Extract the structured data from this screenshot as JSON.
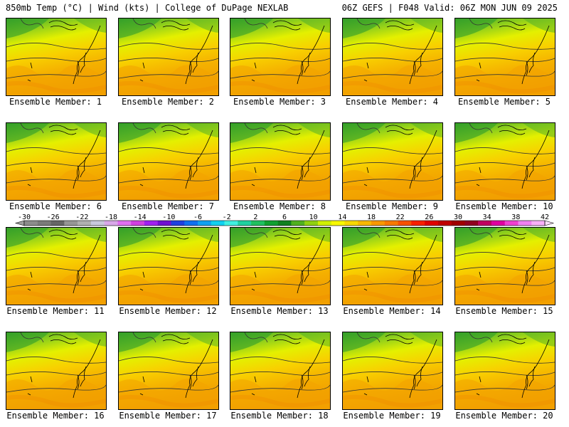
{
  "header": {
    "left": "850mb Temp (°C) | Wind (kts) | College of DuPage NEXLAB",
    "right": "06Z GEFS | F048 Valid: 06Z MON JUN 09 2025"
  },
  "panels": [
    {
      "label": "Ensemble Member: 1"
    },
    {
      "label": "Ensemble Member: 2"
    },
    {
      "label": "Ensemble Member: 3"
    },
    {
      "label": "Ensemble Member: 4"
    },
    {
      "label": "Ensemble Member: 5"
    },
    {
      "label": "Ensemble Member: 6"
    },
    {
      "label": "Ensemble Member: 7"
    },
    {
      "label": "Ensemble Member: 8"
    },
    {
      "label": "Ensemble Member: 9"
    },
    {
      "label": "Ensemble Member: 10"
    },
    {
      "label": "Ensemble Member: 11"
    },
    {
      "label": "Ensemble Member: 12"
    },
    {
      "label": "Ensemble Member: 13"
    },
    {
      "label": "Ensemble Member: 14"
    },
    {
      "label": "Ensemble Member: 15"
    },
    {
      "label": "Ensemble Member: 16"
    },
    {
      "label": "Ensemble Member: 17"
    },
    {
      "label": "Ensemble Member: 18"
    },
    {
      "label": "Ensemble Member: 19"
    },
    {
      "label": "Ensemble Member: 20"
    }
  ],
  "colorbar": {
    "labels": [
      "-30",
      "-26",
      "-22",
      "-18",
      "-14",
      "-10",
      "-6",
      "-2",
      "2",
      "6",
      "10",
      "14",
      "18",
      "22",
      "26",
      "30",
      "34",
      "38",
      "42"
    ],
    "colors": [
      "#8c8c8c",
      "#7a7a7a",
      "#666666",
      "#969696",
      "#b0b0b0",
      "#c8c8dc",
      "#d8a8e8",
      "#e070f0",
      "#d040e0",
      "#a020f0",
      "#7010d0",
      "#2040e0",
      "#1070f0",
      "#10a0f0",
      "#10d0f0",
      "#40f0e0",
      "#20d0a0",
      "#20c060",
      "#10a030",
      "#108020",
      "#50b020",
      "#90d010",
      "#d0f000",
      "#f8f800",
      "#f8d800",
      "#f8b800",
      "#f89800",
      "#f87800",
      "#f85000",
      "#f82000",
      "#e00000",
      "#c00000",
      "#a00000",
      "#900020",
      "#c00060",
      "#e000a0",
      "#f040d0",
      "#f080f0",
      "#f8b0f8"
    ]
  }
}
